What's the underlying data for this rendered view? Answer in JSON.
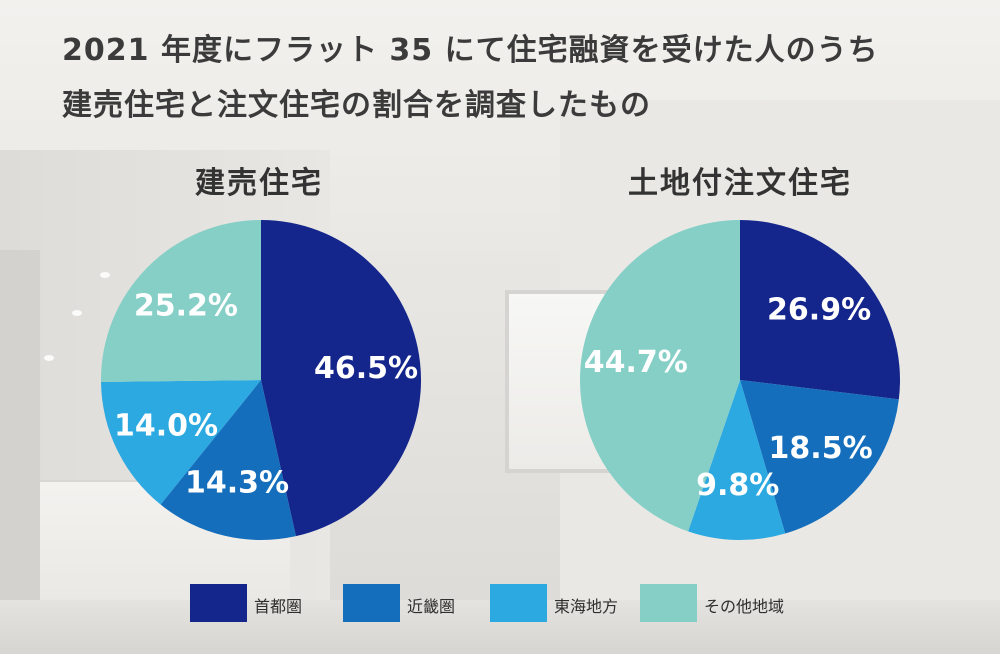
{
  "title": {
    "line1": "2021 年度にフラット 35 にて住宅融資を受けた人のうち",
    "line2": "建売住宅と注文住宅の割合を調査したもの"
  },
  "legend": [
    {
      "label": "首都圏",
      "color": "#14268c"
    },
    {
      "label": "近畿圏",
      "color": "#156ebc"
    },
    {
      "label": "東海地方",
      "color": "#2ca9e1"
    },
    {
      "label": "その他地域",
      "color": "#86cfc7"
    }
  ],
  "chart_data": [
    {
      "type": "pie",
      "title": "建売住宅",
      "labels": [
        "首都圏",
        "近畿圏",
        "東海地方",
        "その他地域"
      ],
      "values": [
        46.5,
        14.3,
        14.0,
        25.2
      ],
      "value_labels": [
        "46.5%",
        "14.3%",
        "14.0%",
        "25.2%"
      ],
      "colors": [
        "#14268c",
        "#156ebc",
        "#2ca9e1",
        "#86cfc7"
      ]
    },
    {
      "type": "pie",
      "title": "土地付注文住宅",
      "labels": [
        "首都圏",
        "近畿圏",
        "東海地方",
        "その他地域"
      ],
      "values": [
        26.9,
        18.5,
        9.8,
        44.7
      ],
      "value_labels": [
        "26.9%",
        "18.5%",
        "9.8%",
        "44.7%"
      ],
      "colors": [
        "#14268c",
        "#156ebc",
        "#2ca9e1",
        "#86cfc7"
      ]
    }
  ]
}
